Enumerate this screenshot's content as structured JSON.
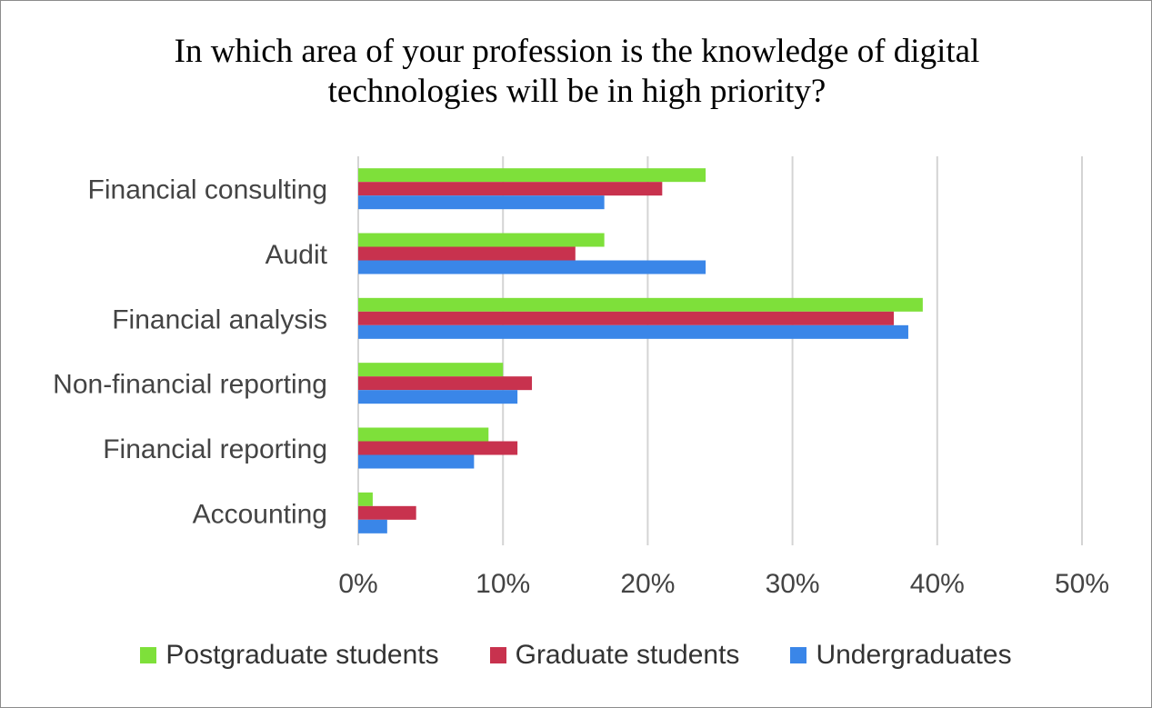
{
  "chart_data": {
    "type": "bar",
    "orientation": "horizontal",
    "title": "In which area of your profession is the knowledge of digital technologies will be in high priority?",
    "categories": [
      "Financial consulting",
      "Audit",
      "Financial analysis",
      "Non-financial reporting",
      "Financial reporting",
      "Accounting"
    ],
    "series": [
      {
        "name": "Postgraduate students",
        "color": "#7ee03a",
        "values": [
          24,
          17,
          39,
          10,
          9,
          1
        ]
      },
      {
        "name": "Graduate students",
        "color": "#c8324e",
        "values": [
          21,
          15,
          37,
          12,
          11,
          4
        ]
      },
      {
        "name": "Undergraduates",
        "color": "#3a86e8",
        "values": [
          17,
          24,
          38,
          11,
          8,
          2
        ]
      }
    ],
    "xlim": [
      0,
      50
    ],
    "x_ticks": [
      "0%",
      "10%",
      "20%",
      "30%",
      "40%",
      "50%"
    ],
    "value_unit": "%",
    "grid": "vertical",
    "legend_position": "bottom"
  }
}
